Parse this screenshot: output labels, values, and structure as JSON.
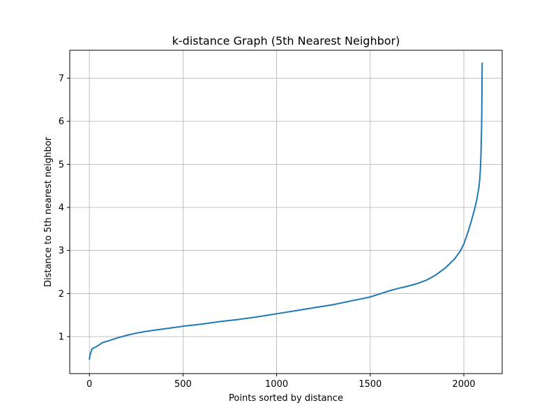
{
  "chart_data": {
    "type": "line",
    "title": "k-distance Graph (5th Nearest Neighbor)",
    "xlabel": "Points sorted by distance",
    "ylabel": "Distance to 5th nearest neighbor",
    "xlim": [
      -105,
      2205
    ],
    "ylim": [
      0.14,
      7.65
    ],
    "xticks": [
      0,
      500,
      1000,
      1500,
      2000
    ],
    "yticks": [
      1,
      2,
      3,
      4,
      5,
      6,
      7
    ],
    "grid": true,
    "legend": "none",
    "series": [
      {
        "color": "#1f77b4",
        "x": [
          0,
          5,
          15,
          30,
          50,
          70,
          100,
          150,
          200,
          250,
          300,
          400,
          500,
          600,
          700,
          800,
          900,
          1000,
          1100,
          1200,
          1300,
          1400,
          1500,
          1550,
          1600,
          1650,
          1700,
          1750,
          1800,
          1850,
          1900,
          1950,
          1980,
          2000,
          2020,
          2040,
          2060,
          2070,
          2080,
          2085,
          2088,
          2090,
          2092,
          2093,
          2094,
          2095,
          2096,
          2097,
          2098
        ],
        "y": [
          0.48,
          0.6,
          0.72,
          0.75,
          0.8,
          0.86,
          0.9,
          0.97,
          1.03,
          1.08,
          1.12,
          1.18,
          1.24,
          1.29,
          1.35,
          1.4,
          1.46,
          1.53,
          1.6,
          1.67,
          1.74,
          1.83,
          1.92,
          1.99,
          2.06,
          2.12,
          2.17,
          2.23,
          2.31,
          2.43,
          2.59,
          2.8,
          2.98,
          3.15,
          3.4,
          3.68,
          4.0,
          4.2,
          4.45,
          4.65,
          4.85,
          5.05,
          5.3,
          5.5,
          5.7,
          5.9,
          6.2,
          6.8,
          7.35
        ]
      }
    ]
  }
}
